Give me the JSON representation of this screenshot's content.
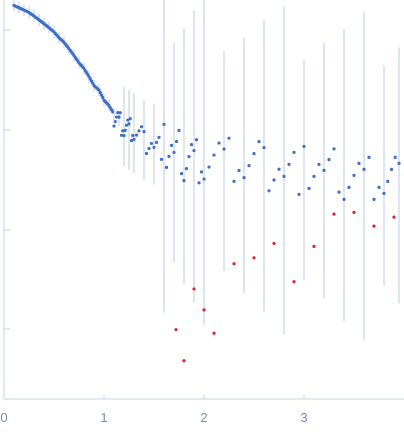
{
  "chart_data": {
    "type": "scatter",
    "title": "",
    "xlabel": "",
    "ylabel": "",
    "xlim": [
      0,
      4
    ],
    "x_ticks": [
      {
        "value": 0,
        "label": "0"
      },
      {
        "value": 1,
        "label": "1"
      },
      {
        "value": 2,
        "label": "2"
      },
      {
        "value": 3,
        "label": "3"
      }
    ],
    "y_log_scale": true,
    "y_tick_labels_shown": false,
    "grid": false,
    "legend": "none",
    "colors": {
      "axis": "#c7d3e6",
      "tick_label": "#6f8fc0",
      "error_bar": "#b9cbe6",
      "data_point": "#3f6fc6",
      "outlier_point": "#d8262b"
    },
    "series": [
      {
        "marker_color": "#3f6fc6",
        "values": [
          [
            0.1,
            1.0
          ],
          [
            0.15,
            0.98
          ],
          [
            0.2,
            0.96
          ],
          [
            0.25,
            0.94
          ],
          [
            0.3,
            0.91
          ],
          [
            0.35,
            0.88
          ],
          [
            0.4,
            0.85
          ],
          [
            0.45,
            0.82
          ],
          [
            0.5,
            0.79
          ],
          [
            0.55,
            0.75
          ],
          [
            0.6,
            0.72
          ],
          [
            0.65,
            0.68
          ],
          [
            0.7,
            0.64
          ],
          [
            0.75,
            0.6
          ],
          [
            0.8,
            0.57
          ],
          [
            0.85,
            0.53
          ],
          [
            0.9,
            0.49
          ],
          [
            0.95,
            0.47
          ],
          [
            1.0,
            0.43
          ],
          [
            1.05,
            0.41
          ],
          [
            1.1,
            0.38
          ],
          [
            1.15,
            0.36
          ],
          [
            1.2,
            0.34
          ],
          [
            1.25,
            0.33
          ],
          [
            1.3,
            0.32
          ],
          [
            1.4,
            0.3
          ],
          [
            1.5,
            0.29
          ],
          [
            1.6,
            0.28
          ],
          [
            1.7,
            0.27
          ],
          [
            1.8,
            0.26
          ],
          [
            1.9,
            0.26
          ],
          [
            2.0,
            0.25
          ],
          [
            2.2,
            0.25
          ],
          [
            2.4,
            0.24
          ],
          [
            2.6,
            0.24
          ],
          [
            2.8,
            0.23
          ],
          [
            3.0,
            0.23
          ],
          [
            3.2,
            0.23
          ],
          [
            3.4,
            0.22
          ],
          [
            3.6,
            0.22
          ],
          [
            3.8,
            0.22
          ],
          [
            3.95,
            0.22
          ]
        ]
      },
      {
        "marker_color": "#d8262b",
        "note_range": "q > 1.7",
        "values": [
          [
            1.72,
            0.05
          ],
          [
            1.8,
            0.04
          ],
          [
            1.9,
            0.08
          ],
          [
            2.0,
            0.07
          ],
          [
            2.1,
            0.06
          ],
          [
            2.3,
            0.09
          ],
          [
            2.5,
            0.1
          ],
          [
            2.7,
            0.12
          ],
          [
            2.9,
            0.09
          ],
          [
            3.1,
            0.13
          ],
          [
            3.3,
            0.14
          ],
          [
            3.5,
            0.15
          ],
          [
            3.7,
            0.14
          ],
          [
            3.9,
            0.16
          ]
        ]
      }
    ]
  }
}
